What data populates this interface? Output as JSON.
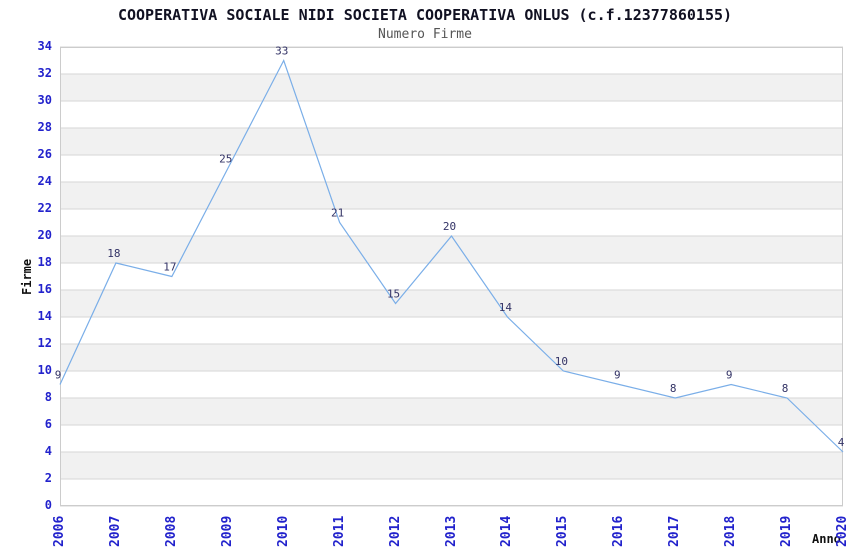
{
  "chart_data": {
    "type": "line",
    "title": "COOPERATIVA SOCIALE NIDI SOCIETA COOPERATIVA ONLUS (c.f.12377860155)",
    "subtitle": "Numero Firme",
    "xlabel": "Anno",
    "ylabel": "Firme",
    "categories": [
      "2006",
      "2007",
      "2008",
      "2009",
      "2010",
      "2011",
      "2012",
      "2013",
      "2014",
      "2015",
      "2016",
      "2017",
      "2018",
      "2019",
      "2020"
    ],
    "values": [
      9,
      18,
      17,
      25,
      33,
      21,
      15,
      20,
      14,
      10,
      9,
      8,
      9,
      8,
      4
    ],
    "ylim": [
      0,
      34
    ],
    "ytick_step": 2,
    "grid": "horizontal gridlines with alternating shaded bands every 2 units",
    "legend": "none",
    "point_labels_shown": true,
    "colors": {
      "line": "#7aaee8",
      "band": "#f1f1f1",
      "gridline": "#d6d6d6",
      "plot_border": "#cccccc",
      "axis_tick_text": "#2222cc",
      "point_label_text": "#333366",
      "title_text": "#111122",
      "subtitle_text": "#555555",
      "axis_title_text": "#111111"
    }
  }
}
